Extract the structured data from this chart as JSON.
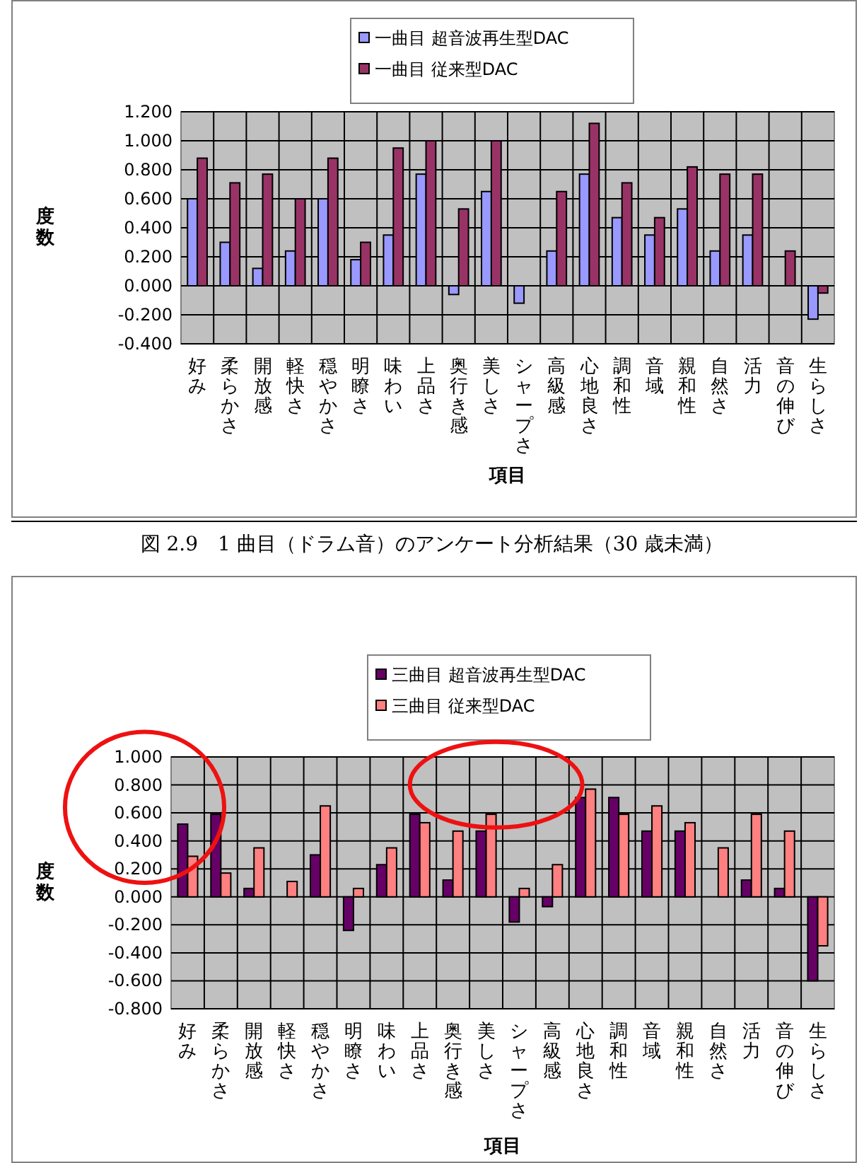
{
  "chart_data": [
    {
      "type": "bar",
      "xlabel": "項目",
      "ylabel": "度数",
      "categories": [
        "好み",
        "柔らかさ",
        "開放感",
        "軽快さ",
        "穏やかさ",
        "明瞭さ",
        "味わい",
        "上品さ",
        "奥行き感",
        "美しさ",
        "シャープさ",
        "高級感",
        "心地良さ",
        "調和性",
        "音域",
        "親和性",
        "自然さ",
        "活力",
        "音の伸び",
        "生らしさ"
      ],
      "series": [
        {
          "name": "一曲目 超音波再生型DAC",
          "color": "#9999ff",
          "values": [
            0.6,
            0.3,
            0.12,
            0.24,
            0.6,
            0.18,
            0.35,
            0.77,
            -0.06,
            0.65,
            -0.12,
            0.24,
            0.77,
            0.47,
            0.35,
            0.53,
            0.24,
            0.35,
            0,
            -0.23
          ]
        },
        {
          "name": "一曲目 従来型DAC",
          "color": "#993366",
          "values": [
            0.88,
            0.71,
            0.77,
            0.6,
            0.88,
            0.3,
            0.95,
            1.0,
            0.53,
            1.0,
            0,
            0.65,
            1.12,
            0.71,
            0.47,
            0.82,
            0.77,
            0.77,
            0.24,
            -0.05
          ]
        }
      ],
      "ylim": [
        -0.4,
        1.2
      ],
      "yticks": [
        {
          "value": -0.4,
          "label": "-0.400"
        },
        {
          "value": -0.2,
          "label": "-0.200"
        },
        {
          "value": 0,
          "label": "0.000"
        },
        {
          "value": 0.2,
          "label": "0.200"
        },
        {
          "value": 0.4,
          "label": "0.400"
        },
        {
          "value": 0.6,
          "label": "0.600"
        },
        {
          "value": 0.8,
          "label": "0.800"
        },
        {
          "value": 1.0,
          "label": "1.000"
        },
        {
          "value": 1.2,
          "label": "1.200"
        }
      ],
      "grid": true,
      "legend": "top",
      "annotations": [
        "図 2.9　1 曲目（ドラム音）のアンケート分析結果（30 歳未満）"
      ]
    },
    {
      "type": "bar",
      "xlabel": "項目",
      "ylabel": "度数",
      "categories": [
        "好み",
        "柔らかさ",
        "開放感",
        "軽快さ",
        "穏やかさ",
        "明瞭さ",
        "味わい",
        "上品さ",
        "奥行き感",
        "美しさ",
        "シャープさ",
        "高級感",
        "心地良さ",
        "調和性",
        "音域",
        "親和性",
        "自然さ",
        "活力",
        "音の伸び",
        "生らしさ"
      ],
      "series": [
        {
          "name": "三曲目 超音波再生型DAC",
          "color": "#660066",
          "values": [
            0.52,
            0.59,
            0.06,
            0,
            0.3,
            -0.24,
            0.23,
            0.59,
            0.12,
            0.47,
            -0.18,
            -0.07,
            0.71,
            0.71,
            0.47,
            0.47,
            0,
            0.12,
            0.06,
            -0.6
          ]
        },
        {
          "name": "三曲目 従来型DAC",
          "color": "#ff8080",
          "values": [
            0.29,
            0.17,
            0.35,
            0.11,
            0.65,
            0.06,
            0.35,
            0.53,
            0.47,
            0.59,
            0.06,
            0.23,
            0.77,
            0.59,
            0.65,
            0.53,
            0.35,
            0.59,
            0.47,
            -0.35
          ]
        }
      ],
      "ylim": [
        -0.8,
        1.0
      ],
      "yticks": [
        {
          "value": -0.8,
          "label": "-0.800"
        },
        {
          "value": -0.6,
          "label": "-0.600"
        },
        {
          "value": -0.4,
          "label": "-0.400"
        },
        {
          "value": -0.2,
          "label": "-0.200"
        },
        {
          "value": 0,
          "label": "0.000"
        },
        {
          "value": 0.2,
          "label": "0.200"
        },
        {
          "value": 0.4,
          "label": "0.400"
        },
        {
          "value": 0.6,
          "label": "0.600"
        },
        {
          "value": 0.8,
          "label": "0.800"
        },
        {
          "value": 1.0,
          "label": "1.000"
        }
      ],
      "grid": true,
      "legend": "top"
    }
  ]
}
